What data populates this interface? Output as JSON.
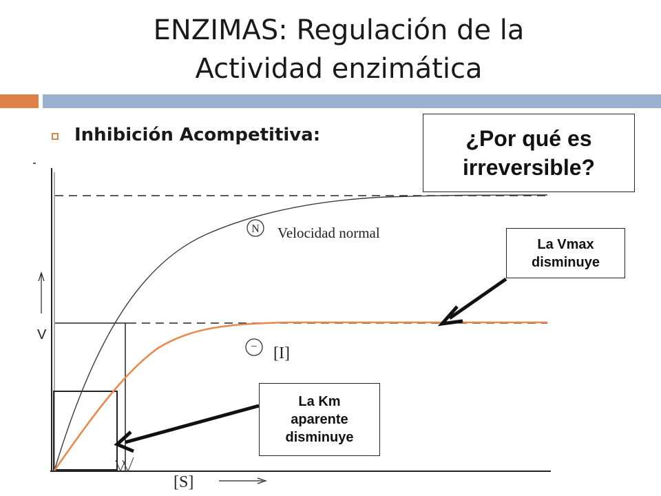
{
  "slide": {
    "title_line1": "ENZIMAS: Regulación de la",
    "title_line2": "Actividad enzimática",
    "bullet": "Inhibición Acompetitiva:"
  },
  "callouts": {
    "question_line1": "¿Por qué es",
    "question_line2": "irreversible?",
    "vmax_line1": "La Vmax",
    "vmax_line2": "disminuye",
    "km_line1": "La Km",
    "km_line2": "aparente",
    "km_line3": "disminuye"
  },
  "diagram": {
    "y_axis_label": "V",
    "x_axis_label": "[S]",
    "normal_marker": "N",
    "normal_label": "Velocidad normal",
    "inhibited_marker": "−",
    "inhibitor_label": "[I]"
  },
  "colors": {
    "accent_orange": "#dd8149",
    "accent_blue": "#9ab1cf",
    "inhibited_curve": "#e8894e"
  }
}
